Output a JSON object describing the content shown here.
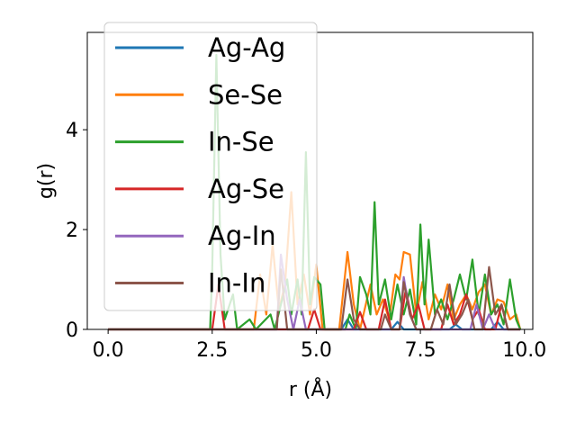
{
  "chart_data": {
    "type": "line",
    "xlabel": "r (Å)",
    "ylabel": "g(r)",
    "xlim": [
      -0.5,
      10.2
    ],
    "ylim": [
      0,
      5.95
    ],
    "xticks": [
      0.0,
      2.5,
      5.0,
      7.5,
      10.0
    ],
    "xtick_labels": [
      "0.0",
      "2.5",
      "5.0",
      "7.5",
      "10.0"
    ],
    "yticks": [
      0,
      2,
      4
    ],
    "ytick_labels": [
      "0",
      "2",
      "4"
    ],
    "legend_position": "upper-left",
    "series": [
      {
        "name": "Ag-Ag",
        "color": "#1f77b4",
        "points": [
          [
            0,
            0
          ],
          [
            5.6,
            0
          ],
          [
            5.75,
            0.2
          ],
          [
            5.9,
            0
          ],
          [
            6.8,
            0
          ],
          [
            6.95,
            0.15
          ],
          [
            7.1,
            0
          ],
          [
            8.2,
            0
          ],
          [
            8.35,
            0.1
          ],
          [
            8.5,
            0
          ],
          [
            9.2,
            0
          ],
          [
            9.35,
            0.15
          ],
          [
            9.5,
            0
          ],
          [
            9.9,
            0
          ]
        ]
      },
      {
        "name": "Se-Se",
        "color": "#ff7f0e",
        "points": [
          [
            0,
            0
          ],
          [
            3.5,
            0
          ],
          [
            3.65,
            1.1
          ],
          [
            3.8,
            0.3
          ],
          [
            3.95,
            1.7
          ],
          [
            4.1,
            0.4
          ],
          [
            4.25,
            0.9
          ],
          [
            4.4,
            2.75
          ],
          [
            4.55,
            0.5
          ],
          [
            4.7,
            1.1
          ],
          [
            4.85,
            0.3
          ],
          [
            5.0,
            1.3
          ],
          [
            5.15,
            0
          ],
          [
            5.55,
            0
          ],
          [
            5.75,
            1.55
          ],
          [
            5.9,
            0.5
          ],
          [
            6.05,
            0
          ],
          [
            6.3,
            0.9
          ],
          [
            6.45,
            0.3
          ],
          [
            6.6,
            0.6
          ],
          [
            6.75,
            0.2
          ],
          [
            6.9,
            1.1
          ],
          [
            7.0,
            1.0
          ],
          [
            7.1,
            1.55
          ],
          [
            7.25,
            1.5
          ],
          [
            7.4,
            0.3
          ],
          [
            7.55,
            0.95
          ],
          [
            7.7,
            0.2
          ],
          [
            7.85,
            0.7
          ],
          [
            8.0,
            0.4
          ],
          [
            8.15,
            0.9
          ],
          [
            8.3,
            0.2
          ],
          [
            8.45,
            0.5
          ],
          [
            8.6,
            0.7
          ],
          [
            8.75,
            0.4
          ],
          [
            8.9,
            0.75
          ],
          [
            9.05,
            0.9
          ],
          [
            9.2,
            0.3
          ],
          [
            9.35,
            0.6
          ],
          [
            9.5,
            0.55
          ],
          [
            9.65,
            0.2
          ],
          [
            9.8,
            0.3
          ],
          [
            9.9,
            0
          ]
        ]
      },
      {
        "name": "In-Se",
        "color": "#2ca02c",
        "points": [
          [
            0,
            0
          ],
          [
            2.45,
            0
          ],
          [
            2.5,
            1.2
          ],
          [
            2.6,
            5.5
          ],
          [
            2.7,
            1.5
          ],
          [
            2.8,
            0.2
          ],
          [
            3.0,
            0.7
          ],
          [
            3.1,
            0
          ],
          [
            3.4,
            0.2
          ],
          [
            3.55,
            0
          ],
          [
            3.9,
            0.3
          ],
          [
            4.0,
            0
          ],
          [
            4.3,
            1.0
          ],
          [
            4.4,
            0.3
          ],
          [
            4.55,
            1.0
          ],
          [
            4.65,
            0.3
          ],
          [
            4.75,
            3.55
          ],
          [
            4.85,
            0.5
          ],
          [
            4.95,
            1.05
          ],
          [
            5.1,
            0.9
          ],
          [
            5.2,
            0
          ],
          [
            5.7,
            0
          ],
          [
            5.8,
            0.3
          ],
          [
            5.95,
            0
          ],
          [
            6.05,
            1.05
          ],
          [
            6.2,
            0.7
          ],
          [
            6.3,
            0.3
          ],
          [
            6.4,
            2.55
          ],
          [
            6.5,
            0.5
          ],
          [
            6.65,
            1.0
          ],
          [
            6.8,
            0.2
          ],
          [
            6.95,
            0.9
          ],
          [
            7.1,
            0.3
          ],
          [
            7.25,
            0.8
          ],
          [
            7.4,
            0.1
          ],
          [
            7.5,
            2.1
          ],
          [
            7.6,
            0.5
          ],
          [
            7.7,
            1.8
          ],
          [
            7.85,
            0.3
          ],
          [
            8.0,
            0.6
          ],
          [
            8.15,
            0.2
          ],
          [
            8.3,
            0.6
          ],
          [
            8.45,
            1.1
          ],
          [
            8.6,
            0.6
          ],
          [
            8.75,
            1.4
          ],
          [
            8.9,
            0.3
          ],
          [
            9.05,
            1.1
          ],
          [
            9.2,
            0.3
          ],
          [
            9.35,
            0.5
          ],
          [
            9.5,
            0.1
          ],
          [
            9.65,
            1.0
          ],
          [
            9.8,
            0.2
          ],
          [
            9.9,
            0
          ]
        ]
      },
      {
        "name": "Ag-Se",
        "color": "#d62728",
        "points": [
          [
            0,
            0
          ],
          [
            2.5,
            0
          ],
          [
            2.65,
            0.9
          ],
          [
            2.8,
            0
          ],
          [
            4.8,
            0
          ],
          [
            4.95,
            0.4
          ],
          [
            5.1,
            0
          ],
          [
            5.9,
            0
          ],
          [
            6.05,
            0.35
          ],
          [
            6.2,
            0
          ],
          [
            6.5,
            0
          ],
          [
            6.65,
            0.6
          ],
          [
            6.8,
            0
          ],
          [
            7.0,
            0
          ],
          [
            7.15,
            0.8
          ],
          [
            7.3,
            0.2
          ],
          [
            7.45,
            0.5
          ],
          [
            7.6,
            0
          ],
          [
            8.0,
            0
          ],
          [
            8.15,
            0.5
          ],
          [
            8.3,
            0.1
          ],
          [
            8.45,
            0.3
          ],
          [
            8.6,
            0.7
          ],
          [
            8.75,
            0.2
          ],
          [
            8.9,
            0.4
          ],
          [
            9.05,
            0
          ],
          [
            9.3,
            0
          ],
          [
            9.45,
            0.5
          ],
          [
            9.6,
            0
          ],
          [
            9.9,
            0
          ]
        ]
      },
      {
        "name": "Ag-In",
        "color": "#9467bd",
        "points": [
          [
            0,
            0
          ],
          [
            4.05,
            0
          ],
          [
            4.15,
            1.5
          ],
          [
            4.3,
            0.6
          ],
          [
            4.45,
            0
          ],
          [
            4.6,
            0.6
          ],
          [
            4.75,
            0
          ],
          [
            7.0,
            0
          ],
          [
            7.1,
            1.05
          ],
          [
            7.25,
            0.3
          ],
          [
            7.4,
            0
          ],
          [
            8.7,
            0
          ],
          [
            8.85,
            0.5
          ],
          [
            9.0,
            0
          ],
          [
            9.15,
            0.3
          ],
          [
            9.3,
            0
          ],
          [
            9.9,
            0
          ]
        ]
      },
      {
        "name": "In-In",
        "color": "#8c564b",
        "points": [
          [
            0,
            0
          ],
          [
            4.05,
            0
          ],
          [
            4.15,
            1.2
          ],
          [
            4.3,
            0
          ],
          [
            5.6,
            0
          ],
          [
            5.75,
            1.0
          ],
          [
            5.9,
            0.2
          ],
          [
            6.05,
            0
          ],
          [
            6.55,
            0
          ],
          [
            6.65,
            0.3
          ],
          [
            6.8,
            0
          ],
          [
            7.0,
            0
          ],
          [
            7.1,
            0.95
          ],
          [
            7.25,
            0.3
          ],
          [
            7.4,
            0
          ],
          [
            7.75,
            0
          ],
          [
            7.9,
            0.4
          ],
          [
            8.05,
            0.1
          ],
          [
            8.2,
            0.9
          ],
          [
            8.35,
            0.1
          ],
          [
            8.5,
            0.3
          ],
          [
            8.65,
            0.6
          ],
          [
            8.8,
            0
          ],
          [
            9.0,
            0
          ],
          [
            9.15,
            1.25
          ],
          [
            9.3,
            0.3
          ],
          [
            9.45,
            0.5
          ],
          [
            9.6,
            0
          ],
          [
            9.9,
            0
          ]
        ]
      }
    ]
  }
}
